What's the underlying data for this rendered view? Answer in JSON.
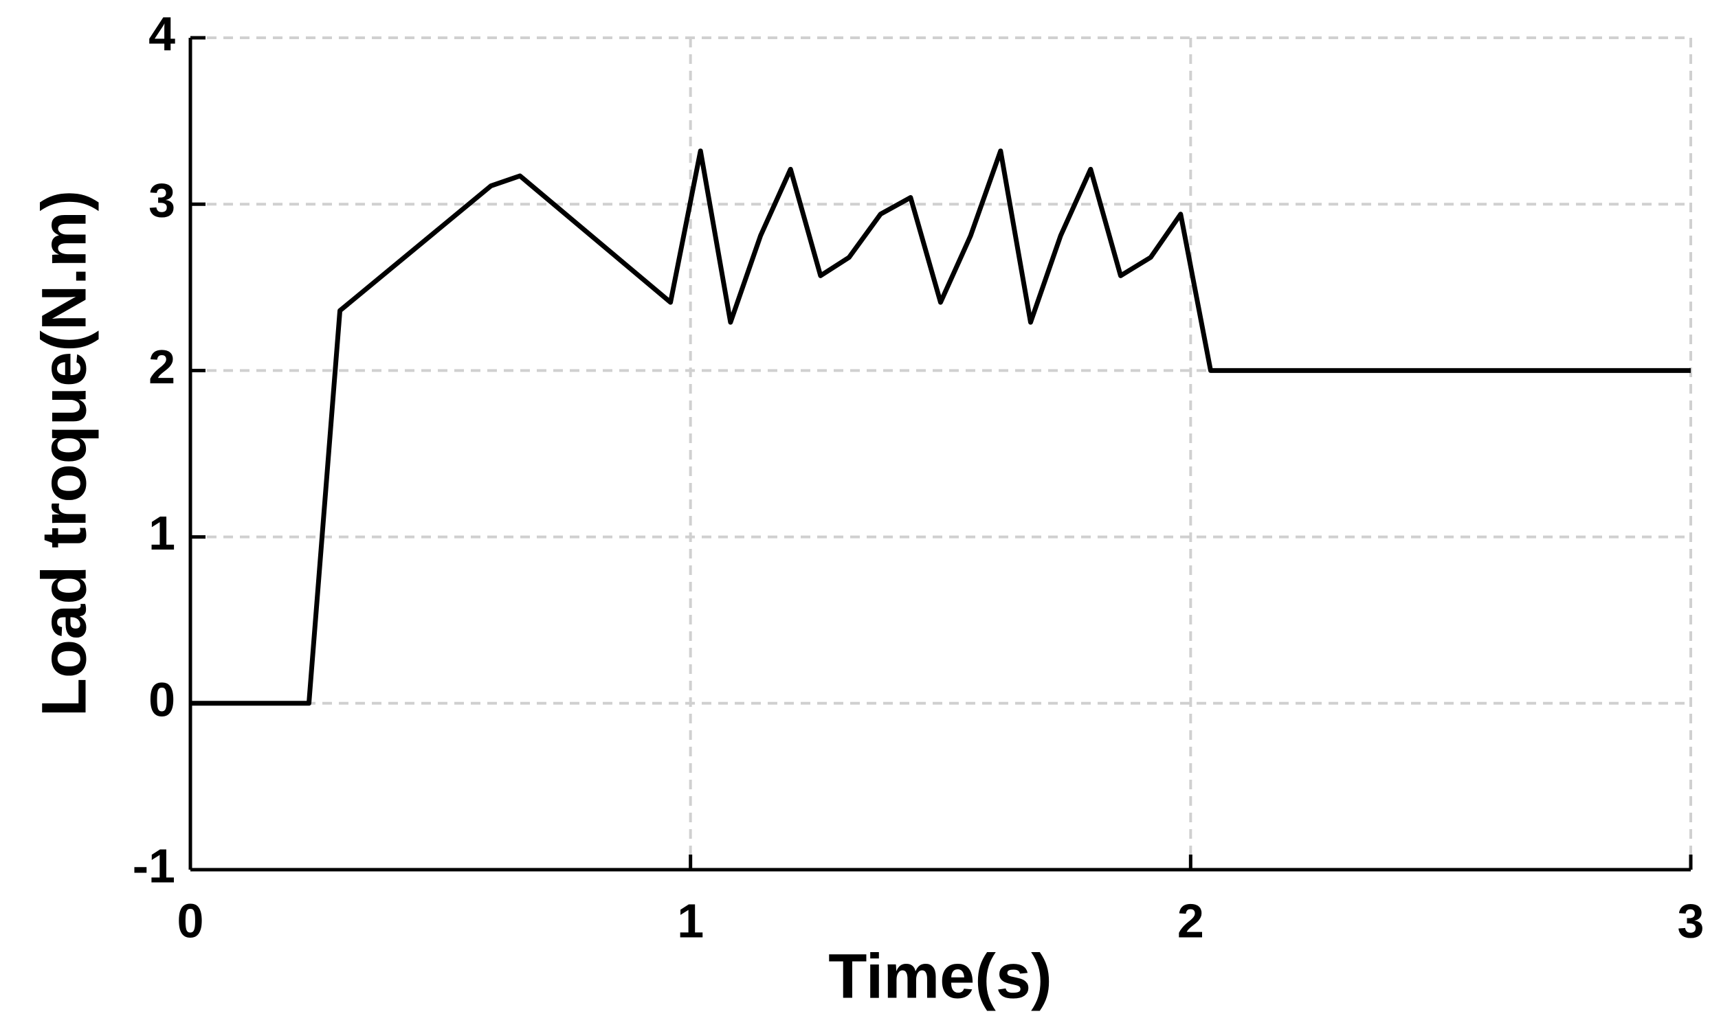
{
  "chart_data": {
    "type": "line",
    "xlabel": "Time(s)",
    "ylabel": "Load troque(N.m)",
    "x": [
      0,
      0.237,
      0.299,
      0.601,
      0.659,
      0.96,
      1.02,
      1.08,
      1.14,
      1.2,
      1.26,
      1.317,
      1.38,
      1.44,
      1.5,
      1.56,
      1.62,
      1.68,
      1.74,
      1.8,
      1.86,
      1.92,
      1.98,
      2.04,
      3
    ],
    "values": [
      0,
      0,
      2.36,
      3.11,
      3.17,
      2.41,
      3.32,
      2.29,
      2.81,
      3.21,
      2.57,
      2.68,
      2.94,
      3.04,
      2.41,
      2.81,
      3.32,
      2.29,
      2.81,
      3.21,
      2.57,
      2.68,
      2.94,
      2.0,
      2.0
    ],
    "color": "#000000",
    "xlim": [
      0,
      3
    ],
    "xticks": [
      0,
      1,
      2,
      3
    ],
    "ylim": [
      -1,
      4
    ],
    "yticks": [
      -1,
      0,
      1,
      2,
      3,
      4
    ],
    "grid": true
  }
}
